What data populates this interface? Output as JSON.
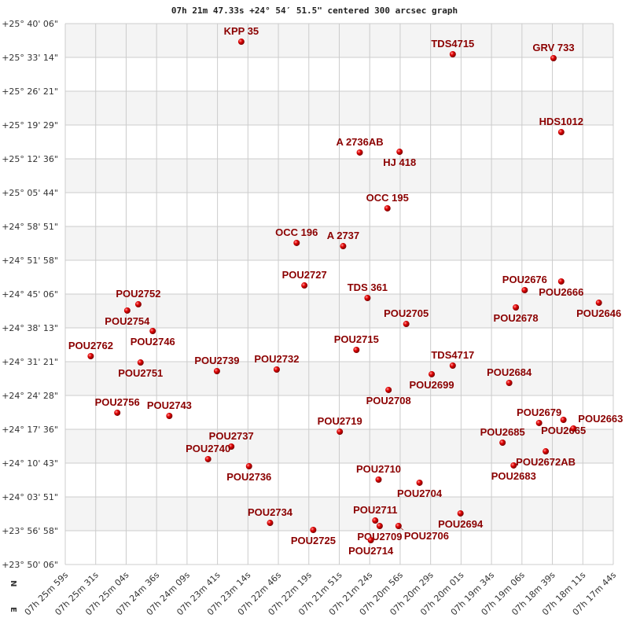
{
  "chart_data": {
    "type": "scatter",
    "title": "07h 21m 47.33s +24° 54′ 51.5\" centered 300 arcsec graph",
    "xlabel": "",
    "ylabel": "",
    "xlim": [
      "07:25:59",
      "07:17:44"
    ],
    "ylim": [
      "+23:50:06",
      "+25:40:06"
    ],
    "x_reversed": true,
    "grid": true,
    "alternating_row_shading": true,
    "compass": {
      "north": "N",
      "east": "E"
    },
    "colors": {
      "point": "#dd0000",
      "label": "#8b0000",
      "grid": "#cccccc",
      "band": "#f4f4f4"
    },
    "x_ticks": [
      "07h 25m 59s",
      "07h 25m 31s",
      "07h 25m 04s",
      "07h 24m 36s",
      "07h 24m 09s",
      "07h 23m 41s",
      "07h 23m 14s",
      "07h 22m 46s",
      "07h 22m 19s",
      "07h 21m 51s",
      "07h 21m 24s",
      "07h 20m 56s",
      "07h 20m 29s",
      "07h 20m 01s",
      "07h 19m 34s",
      "07h 19m 06s",
      "07h 18m 39s",
      "07h 18m 11s",
      "07h 17m 44s"
    ],
    "y_ticks": [
      "+25° 40' 06\"",
      "+25° 33' 14\"",
      "+25° 26' 21\"",
      "+25° 19' 29\"",
      "+25° 12' 36\"",
      "+25° 05' 44\"",
      "+24° 58' 51\"",
      "+24° 51' 58\"",
      "+24° 45' 06\"",
      "+24° 38' 13\"",
      "+24° 31' 21\"",
      "+24° 24' 28\"",
      "+24° 17' 36\"",
      "+24° 10' 43\"",
      "+24° 03' 51\"",
      "+23° 56' 58\"",
      "+23° 50' 06\""
    ],
    "points": [
      {
        "name": "KPP  35",
        "ra": "07:23:20",
        "dec": "+25:36:25"
      },
      {
        "name": "TDS4715",
        "ra": "07:20:09",
        "dec": "+25:33:52"
      },
      {
        "name": "GRV 733",
        "ra": "07:18:38",
        "dec": "+25:33:04"
      },
      {
        "name": "HDS1012",
        "ra": "07:18:31",
        "dec": "+25:18:02"
      },
      {
        "name": "A  2736AB",
        "ra": "07:21:33",
        "dec": "+25:13:53"
      },
      {
        "name": "HJ  418",
        "ra": "07:20:57",
        "dec": "+25:14:02"
      },
      {
        "name": "OCC 195",
        "ra": "07:21:08",
        "dec": "+25:02:32"
      },
      {
        "name": "OCC 196",
        "ra": "07:22:30",
        "dec": "+24:55:30"
      },
      {
        "name": "A  2737",
        "ra": "07:21:48",
        "dec": "+24:54:51"
      },
      {
        "name": "POU2727",
        "ra": "07:22:23",
        "dec": "+24:46:51"
      },
      {
        "name": "TDS 361",
        "ra": "07:21:26",
        "dec": "+24:44:18"
      },
      {
        "name": "POU2676",
        "ra": "07:19:04",
        "dec": "+24:45:54"
      },
      {
        "name": "POU2666",
        "ra": "07:18:31",
        "dec": "+24:47:40"
      },
      {
        "name": "POU2678",
        "ra": "07:19:12",
        "dec": "+24:42:23"
      },
      {
        "name": "POU2646",
        "ra": "07:17:57",
        "dec": "+24:43:20"
      },
      {
        "name": "POU2752",
        "ra": "07:24:53",
        "dec": "+24:43:01"
      },
      {
        "name": "POU2754",
        "ra": "07:25:03",
        "dec": "+24:41:45"
      },
      {
        "name": "POU2746",
        "ra": "07:24:40",
        "dec": "+24:37:35"
      },
      {
        "name": "POU2705",
        "ra": "07:20:51",
        "dec": "+24:39:01"
      },
      {
        "name": "POU2715",
        "ra": "07:21:36",
        "dec": "+24:33:45"
      },
      {
        "name": "POU2762",
        "ra": "07:25:36",
        "dec": "+24:32:28"
      },
      {
        "name": "POU2751",
        "ra": "07:24:51",
        "dec": "+24:31:11"
      },
      {
        "name": "POU2739",
        "ra": "07:23:42",
        "dec": "+24:29:26"
      },
      {
        "name": "POU2732",
        "ra": "07:22:48",
        "dec": "+24:29:45"
      },
      {
        "name": "TDS4717",
        "ra": "07:20:09",
        "dec": "+24:30:33"
      },
      {
        "name": "POU2699",
        "ra": "07:20:28",
        "dec": "+24:28:48"
      },
      {
        "name": "POU2684",
        "ra": "07:19:18",
        "dec": "+24:27:02"
      },
      {
        "name": "POU2708",
        "ra": "07:21:07",
        "dec": "+24:25:36"
      },
      {
        "name": "POU2756",
        "ra": "07:25:12",
        "dec": "+24:20:58"
      },
      {
        "name": "POU2743",
        "ra": "07:24:25",
        "dec": "+24:20:19"
      },
      {
        "name": "POU2719",
        "ra": "07:21:51",
        "dec": "+24:17:07"
      },
      {
        "name": "POU2679",
        "ra": "07:18:51",
        "dec": "+24:18:53"
      },
      {
        "name": "POU2665",
        "ra": "07:18:29",
        "dec": "+24:19:31"
      },
      {
        "name": "POU2663",
        "ra": "07:18:20",
        "dec": "+24:17:46"
      },
      {
        "name": "POU2685",
        "ra": "07:19:24",
        "dec": "+24:14:53"
      },
      {
        "name": "POU2672AB",
        "ra": "07:18:45",
        "dec": "+24:13:07"
      },
      {
        "name": "POU2683",
        "ra": "07:19:14",
        "dec": "+24:10:15"
      },
      {
        "name": "POU2737",
        "ra": "07:23:29",
        "dec": "+24:14:05"
      },
      {
        "name": "POU2740",
        "ra": "07:23:50",
        "dec": "+24:11:32"
      },
      {
        "name": "POU2736",
        "ra": "07:23:13",
        "dec": "+24:10:05"
      },
      {
        "name": "POU2710",
        "ra": "07:21:16",
        "dec": "+24:07:22"
      },
      {
        "name": "POU2704",
        "ra": "07:20:39",
        "dec": "+24:06:44"
      },
      {
        "name": "POU2694",
        "ra": "07:20:02",
        "dec": "+24:00:30"
      },
      {
        "name": "POU2734",
        "ra": "07:22:54",
        "dec": "+23:58:34"
      },
      {
        "name": "POU2725",
        "ra": "07:22:15",
        "dec": "+23:57:08"
      },
      {
        "name": "POU2711",
        "ra": "07:21:19",
        "dec": "+23:59:03"
      },
      {
        "name": "POU2709",
        "ra": "07:21:15",
        "dec": "+23:57:56"
      },
      {
        "name": "POU2706",
        "ra": "07:20:58",
        "dec": "+23:57:56"
      },
      {
        "name": "POU2714",
        "ra": "07:21:23",
        "dec": "+23:55:03"
      }
    ]
  }
}
